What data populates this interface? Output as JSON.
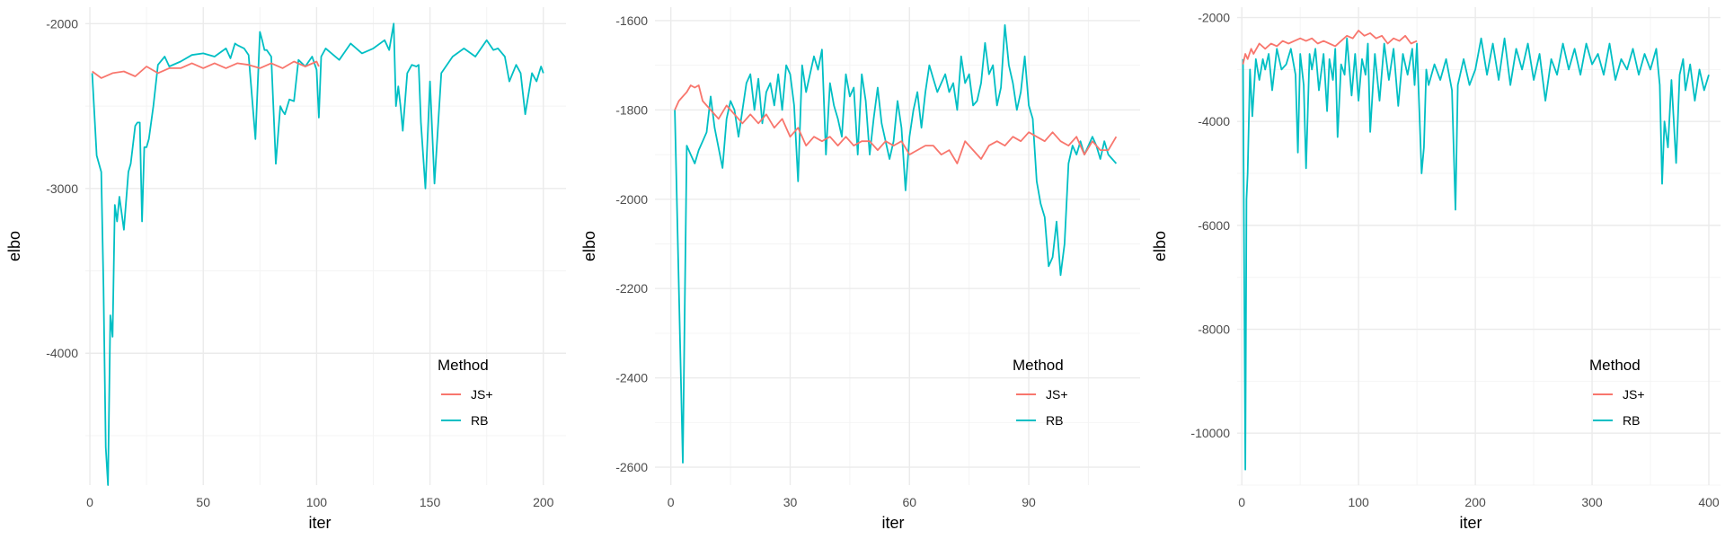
{
  "colors": {
    "background": "#ffffff",
    "grid_major": "#ebebeb",
    "grid_minor": "#f4f4f4",
    "tick_text": "#4d4d4d",
    "label_text": "#000000"
  },
  "chart_data": [
    {
      "type": "line",
      "title": "",
      "xlabel": "iter",
      "ylabel": "elbo",
      "xlim": [
        -2,
        210
      ],
      "ylim": [
        -4800,
        -1900
      ],
      "xticks": [
        0,
        50,
        100,
        150,
        200
      ],
      "yticks": [
        -4000,
        -3000,
        -2000
      ],
      "grid": true,
      "legend": {
        "title": "Method",
        "position": "bottom-right"
      },
      "series": [
        {
          "name": "JS+",
          "color": "#F8766D",
          "x": [
            1,
            5,
            10,
            15,
            20,
            25,
            30,
            35,
            40,
            45,
            50,
            55,
            60,
            65,
            70,
            75,
            80,
            85,
            90,
            95,
            100,
            101
          ],
          "y": [
            -2290,
            -2330,
            -2300,
            -2290,
            -2320,
            -2260,
            -2300,
            -2270,
            -2270,
            -2240,
            -2270,
            -2240,
            -2270,
            -2240,
            -2250,
            -2270,
            -2240,
            -2270,
            -2230,
            -2260,
            -2230,
            -2260
          ]
        },
        {
          "name": "RB",
          "color": "#00BFC4",
          "x": [
            1,
            3,
            5,
            6,
            7,
            8,
            9,
            10,
            11,
            12,
            13,
            14,
            15,
            17,
            18,
            20,
            21,
            22,
            23,
            24,
            25,
            26,
            28,
            30,
            33,
            35,
            40,
            45,
            50,
            55,
            60,
            62,
            64,
            65,
            68,
            70,
            73,
            75,
            76,
            77,
            78,
            80,
            82,
            84,
            85,
            86,
            88,
            90,
            92,
            95,
            98,
            100,
            101,
            102,
            104,
            110,
            115,
            120,
            125,
            130,
            132,
            134,
            135,
            136,
            137,
            138,
            140,
            142,
            144,
            145,
            146,
            148,
            150,
            152,
            155,
            160,
            165,
            170,
            175,
            178,
            180,
            183,
            185,
            188,
            190,
            192,
            195,
            197,
            199,
            200
          ],
          "y": [
            -2300,
            -2800,
            -2900,
            -3600,
            -4570,
            -4800,
            -3770,
            -3900,
            -3100,
            -3200,
            -3050,
            -3150,
            -3250,
            -2900,
            -2850,
            -2620,
            -2600,
            -2600,
            -3200,
            -2750,
            -2750,
            -2700,
            -2500,
            -2250,
            -2200,
            -2260,
            -2230,
            -2190,
            -2180,
            -2200,
            -2150,
            -2210,
            -2120,
            -2130,
            -2150,
            -2190,
            -2700,
            -2050,
            -2100,
            -2160,
            -2160,
            -2200,
            -2850,
            -2500,
            -2530,
            -2550,
            -2460,
            -2470,
            -2220,
            -2260,
            -2200,
            -2280,
            -2570,
            -2200,
            -2150,
            -2220,
            -2120,
            -2180,
            -2150,
            -2100,
            -2160,
            -2000,
            -2500,
            -2380,
            -2500,
            -2650,
            -2300,
            -2250,
            -2260,
            -2250,
            -2600,
            -3000,
            -2350,
            -2970,
            -2300,
            -2200,
            -2150,
            -2200,
            -2100,
            -2160,
            -2150,
            -2200,
            -2350,
            -2250,
            -2300,
            -2550,
            -2300,
            -2350,
            -2260,
            -2300
          ]
        }
      ]
    },
    {
      "type": "line",
      "title": "",
      "xlabel": "iter",
      "ylabel": "elbo",
      "xlim": [
        -4,
        118
      ],
      "ylim": [
        -2640,
        -1570
      ],
      "xticks": [
        0,
        30,
        60,
        90
      ],
      "yticks": [
        -2600,
        -2400,
        -2200,
        -2000,
        -1800,
        -1600
      ],
      "grid": true,
      "legend": {
        "title": "Method",
        "position": "bottom-right"
      },
      "series": [
        {
          "name": "JS+",
          "color": "#F8766D",
          "x": [
            1,
            2,
            3,
            4,
            5,
            6,
            7,
            8,
            9,
            10,
            12,
            14,
            16,
            18,
            20,
            22,
            24,
            26,
            28,
            30,
            32,
            34,
            36,
            38,
            40,
            42,
            44,
            46,
            48,
            50,
            52,
            54,
            56,
            58,
            60,
            62,
            64,
            66,
            68,
            70,
            72,
            74,
            76,
            78,
            80,
            82,
            84,
            86,
            88,
            90,
            92,
            94,
            96,
            98,
            100,
            102,
            104,
            106,
            108,
            110,
            112
          ],
          "y": [
            -1800,
            -1780,
            -1770,
            -1760,
            -1745,
            -1750,
            -1745,
            -1780,
            -1790,
            -1800,
            -1820,
            -1790,
            -1810,
            -1830,
            -1810,
            -1830,
            -1810,
            -1840,
            -1820,
            -1860,
            -1840,
            -1880,
            -1860,
            -1870,
            -1860,
            -1880,
            -1860,
            -1880,
            -1870,
            -1870,
            -1890,
            -1870,
            -1880,
            -1870,
            -1900,
            -1890,
            -1880,
            -1880,
            -1900,
            -1890,
            -1920,
            -1870,
            -1890,
            -1910,
            -1880,
            -1870,
            -1880,
            -1860,
            -1870,
            -1850,
            -1860,
            -1870,
            -1850,
            -1870,
            -1880,
            -1860,
            -1900,
            -1870,
            -1890,
            -1890,
            -1860
          ]
        },
        {
          "name": "RB",
          "color": "#00BFC4",
          "x": [
            1,
            3,
            4,
            5,
            6,
            7,
            8,
            9,
            10,
            11,
            13,
            14,
            15,
            16,
            17,
            18,
            19,
            20,
            21,
            22,
            23,
            24,
            25,
            26,
            27,
            28,
            29,
            30,
            31,
            32,
            33,
            34,
            35,
            36,
            37,
            38,
            39,
            40,
            41,
            42,
            43,
            44,
            45,
            46,
            47,
            48,
            49,
            50,
            51,
            52,
            53,
            54,
            55,
            56,
            57,
            58,
            59,
            60,
            61,
            62,
            63,
            64,
            65,
            66,
            67,
            68,
            69,
            70,
            71,
            72,
            73,
            74,
            75,
            76,
            77,
            78,
            79,
            80,
            81,
            82,
            83,
            84,
            85,
            86,
            87,
            88,
            89,
            90,
            91,
            92,
            93,
            94,
            95,
            96,
            97,
            98,
            99,
            100,
            101,
            102,
            103,
            104,
            105,
            106,
            107,
            108,
            109,
            110,
            112
          ],
          "y": [
            -1800,
            -2590,
            -1880,
            -1900,
            -1920,
            -1890,
            -1870,
            -1850,
            -1770,
            -1840,
            -1930,
            -1820,
            -1780,
            -1800,
            -1860,
            -1800,
            -1740,
            -1720,
            -1800,
            -1730,
            -1830,
            -1760,
            -1740,
            -1790,
            -1720,
            -1800,
            -1700,
            -1720,
            -1790,
            -1960,
            -1700,
            -1760,
            -1720,
            -1680,
            -1710,
            -1665,
            -1900,
            -1740,
            -1790,
            -1820,
            -1860,
            -1720,
            -1770,
            -1750,
            -1900,
            -1720,
            -1780,
            -1900,
            -1820,
            -1750,
            -1830,
            -1870,
            -1910,
            -1870,
            -1780,
            -1840,
            -1980,
            -1860,
            -1800,
            -1760,
            -1840,
            -1760,
            -1700,
            -1730,
            -1760,
            -1740,
            -1720,
            -1760,
            -1740,
            -1800,
            -1680,
            -1740,
            -1720,
            -1790,
            -1780,
            -1740,
            -1650,
            -1720,
            -1700,
            -1790,
            -1750,
            -1610,
            -1700,
            -1740,
            -1800,
            -1760,
            -1680,
            -1790,
            -1820,
            -1960,
            -2010,
            -2040,
            -2150,
            -2130,
            -2050,
            -2170,
            -2100,
            -1920,
            -1880,
            -1900,
            -1870,
            -1900,
            -1880,
            -1860,
            -1880,
            -1910,
            -1870,
            -1900,
            -1920
          ]
        }
      ]
    },
    {
      "type": "line",
      "title": "",
      "xlabel": "iter",
      "ylabel": "elbo",
      "xlim": [
        -4,
        410
      ],
      "ylim": [
        -11000,
        -1800
      ],
      "xticks": [
        0,
        100,
        200,
        300,
        400
      ],
      "yticks": [
        -10000,
        -8000,
        -6000,
        -4000,
        -2000
      ],
      "grid": true,
      "legend": {
        "title": "Method",
        "position": "bottom-right"
      },
      "series": [
        {
          "name": "JS+",
          "color": "#F8766D",
          "x": [
            1,
            3,
            5,
            8,
            10,
            15,
            20,
            25,
            30,
            35,
            40,
            45,
            50,
            55,
            60,
            65,
            70,
            75,
            80,
            85,
            90,
            95,
            100,
            105,
            110,
            115,
            120,
            125,
            130,
            135,
            140,
            145,
            150
          ],
          "y": [
            -2900,
            -2700,
            -2800,
            -2600,
            -2700,
            -2500,
            -2600,
            -2500,
            -2550,
            -2450,
            -2500,
            -2450,
            -2400,
            -2450,
            -2400,
            -2500,
            -2450,
            -2500,
            -2550,
            -2450,
            -2350,
            -2400,
            -2250,
            -2350,
            -2300,
            -2400,
            -2350,
            -2500,
            -2400,
            -2450,
            -2350,
            -2500,
            -2450
          ]
        },
        {
          "name": "RB",
          "color": "#00BFC4",
          "x": [
            1,
            3,
            4,
            5,
            7,
            9,
            12,
            15,
            18,
            20,
            23,
            26,
            30,
            34,
            38,
            42,
            46,
            48,
            50,
            53,
            55,
            58,
            60,
            63,
            66,
            70,
            73,
            75,
            78,
            80,
            82,
            85,
            88,
            90,
            94,
            97,
            100,
            103,
            106,
            108,
            110,
            114,
            118,
            122,
            126,
            130,
            134,
            138,
            142,
            146,
            148,
            150,
            154,
            156,
            158,
            160,
            165,
            170,
            175,
            180,
            183,
            185,
            190,
            195,
            200,
            205,
            210,
            215,
            220,
            225,
            230,
            235,
            240,
            245,
            250,
            255,
            260,
            265,
            270,
            275,
            280,
            285,
            290,
            295,
            300,
            305,
            310,
            315,
            320,
            325,
            330,
            335,
            340,
            345,
            350,
            355,
            358,
            360,
            362,
            365,
            368,
            372,
            375,
            378,
            380,
            384,
            388,
            392,
            396,
            400
          ],
          "y": [
            -2800,
            -10700,
            -5500,
            -5000,
            -3000,
            -3900,
            -2800,
            -3200,
            -2800,
            -3000,
            -2700,
            -3400,
            -2600,
            -3000,
            -2900,
            -2600,
            -3100,
            -4600,
            -2700,
            -3300,
            -4900,
            -2700,
            -3000,
            -2600,
            -3400,
            -2700,
            -3800,
            -2800,
            -3200,
            -2600,
            -4300,
            -2900,
            -3100,
            -2400,
            -3500,
            -2700,
            -3600,
            -2800,
            -3100,
            -2500,
            -4200,
            -2700,
            -3600,
            -2500,
            -3200,
            -2600,
            -3700,
            -2700,
            -3100,
            -2600,
            -3300,
            -2500,
            -5000,
            -4500,
            -3000,
            -3300,
            -2900,
            -3200,
            -2800,
            -3400,
            -5700,
            -3300,
            -2800,
            -3300,
            -3000,
            -2400,
            -3100,
            -2500,
            -3200,
            -2400,
            -3300,
            -2600,
            -3000,
            -2500,
            -3200,
            -2700,
            -3600,
            -2800,
            -3100,
            -2500,
            -3000,
            -2600,
            -3100,
            -2500,
            -2900,
            -2700,
            -3100,
            -2500,
            -3200,
            -2800,
            -3000,
            -2600,
            -3100,
            -2700,
            -3000,
            -2600,
            -3300,
            -5200,
            -4000,
            -4500,
            -3200,
            -4800,
            -3100,
            -2800,
            -3400,
            -2900,
            -3600,
            -3000,
            -3400,
            -3100
          ]
        }
      ]
    }
  ]
}
